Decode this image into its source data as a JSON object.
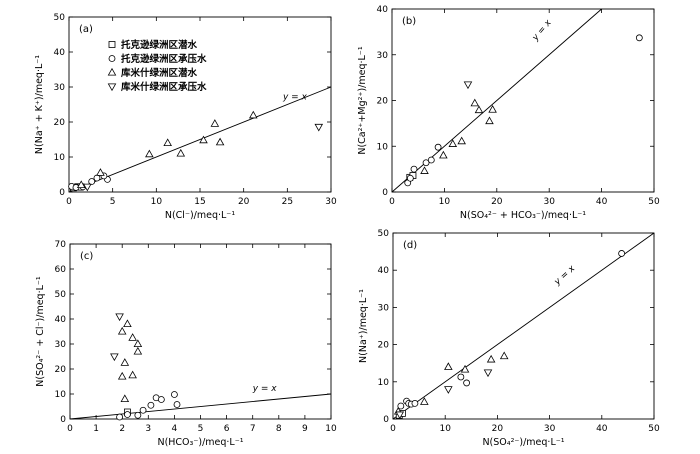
{
  "legend": {
    "items": [
      {
        "label": "托克逊绿洲区潜水",
        "marker": "square"
      },
      {
        "label": "托克逊绿洲区承压水",
        "marker": "circle"
      },
      {
        "label": "库米什绿洲区潜水",
        "marker": "tri-up"
      },
      {
        "label": "库米什绿洲区承压水",
        "marker": "tri-down"
      }
    ]
  },
  "chart_data": [
    {
      "panel": "(a)",
      "type": "scatter",
      "xlabel": "N(Cl⁻)/meq·L⁻¹",
      "ylabel": "N(Na⁺ + K⁺)/meq·L⁻¹",
      "xlim": [
        0,
        30
      ],
      "ylim": [
        0,
        50
      ],
      "xticks": [
        "0",
        "5",
        "10",
        "15",
        "20",
        "25",
        "30"
      ],
      "yticks": [
        "0",
        "10",
        "20",
        "30",
        "40",
        "50"
      ],
      "refline": {
        "label": "y = x",
        "points": [
          [
            0,
            0
          ],
          [
            30,
            30
          ]
        ]
      },
      "series": [
        {
          "marker": "square",
          "points": [
            [
              0.5,
              1.2
            ],
            [
              1.0,
              1.5
            ],
            [
              1.3,
              1.4
            ]
          ]
        },
        {
          "marker": "circle",
          "points": [
            [
              0.3,
              1.6
            ],
            [
              0.8,
              1.3
            ],
            [
              1.6,
              1.5
            ],
            [
              2.6,
              3.0
            ],
            [
              3.2,
              4.0
            ],
            [
              4.4,
              3.6
            ],
            [
              4.0,
              4.6
            ]
          ]
        },
        {
          "marker": "tri-up",
          "points": [
            [
              1.4,
              2.0
            ],
            [
              3.6,
              5.5
            ],
            [
              9.2,
              10.8
            ],
            [
              11.3,
              14.0
            ],
            [
              12.8,
              11.0
            ],
            [
              16.7,
              19.5
            ],
            [
              17.3,
              14.2
            ],
            [
              21.1,
              21.9
            ],
            [
              15.4,
              14.8
            ]
          ]
        },
        {
          "marker": "tri-down",
          "points": [
            [
              2.1,
              1.5
            ],
            [
              28.6,
              18.6
            ]
          ]
        }
      ]
    },
    {
      "panel": "(b)",
      "type": "scatter",
      "xlabel": "N(SO₄²⁻ + HCO₃⁻)/meq·L⁻¹",
      "ylabel": "N(Ca²⁺+Mg²⁺)/meq·L⁻¹",
      "xlim": [
        0,
        50
      ],
      "ylim": [
        0,
        40
      ],
      "xticks": [
        "0",
        "10",
        "20",
        "30",
        "40",
        "50"
      ],
      "yticks": [
        "0",
        "10",
        "20",
        "30",
        "40"
      ],
      "refline": {
        "label": "y = x",
        "points": [
          [
            0,
            0
          ],
          [
            40,
            40
          ]
        ]
      },
      "series": [
        {
          "marker": "square",
          "points": [
            [
              3.4,
              3.2
            ],
            [
              4.0,
              3.6
            ]
          ]
        },
        {
          "marker": "circle",
          "points": [
            [
              3.0,
              2.0
            ],
            [
              3.5,
              3.0
            ],
            [
              4.2,
              5.0
            ],
            [
              6.5,
              6.4
            ],
            [
              7.5,
              7.0
            ],
            [
              8.8,
              9.8
            ],
            [
              47.2,
              33.7
            ]
          ]
        },
        {
          "marker": "tri-up",
          "points": [
            [
              6.2,
              4.6
            ],
            [
              9.8,
              8.0
            ],
            [
              11.6,
              10.5
            ],
            [
              13.3,
              11.1
            ],
            [
              15.8,
              19.4
            ],
            [
              16.6,
              17.9
            ],
            [
              18.6,
              15.5
            ],
            [
              19.2,
              18.0
            ]
          ]
        },
        {
          "marker": "tri-down",
          "points": [
            [
              14.5,
              23.5
            ]
          ]
        }
      ]
    },
    {
      "panel": "(c)",
      "type": "scatter",
      "xlabel": "N(HCO₃⁻)/meq·L⁻¹",
      "ylabel": "N(SO₄²⁻ + Cl⁻)/meq·L⁻¹",
      "xlim": [
        0,
        10
      ],
      "ylim": [
        0,
        70
      ],
      "xticks": [
        "0",
        "1",
        "2",
        "3",
        "4",
        "5",
        "6",
        "7",
        "8",
        "9",
        "10"
      ],
      "yticks": [
        "0",
        "10",
        "20",
        "30",
        "40",
        "50",
        "60",
        "70"
      ],
      "refline": {
        "label": "y = x",
        "points": [
          [
            0,
            0
          ],
          [
            10,
            10
          ]
        ]
      },
      "series": [
        {
          "marker": "square",
          "points": [
            [
              2.2,
              2.8
            ]
          ]
        },
        {
          "marker": "circle",
          "points": [
            [
              1.9,
              0.8
            ],
            [
              2.2,
              1.8
            ],
            [
              2.6,
              1.5
            ],
            [
              2.8,
              3.5
            ],
            [
              3.1,
              5.5
            ],
            [
              3.3,
              8.5
            ],
            [
              3.5,
              7.8
            ],
            [
              4.0,
              9.8
            ],
            [
              4.1,
              5.8
            ]
          ]
        },
        {
          "marker": "tri-up",
          "points": [
            [
              2.0,
              17.0
            ],
            [
              2.1,
              22.5
            ],
            [
              2.2,
              38.0
            ],
            [
              2.4,
              17.5
            ],
            [
              2.4,
              32.5
            ],
            [
              2.6,
              30.0
            ],
            [
              2.6,
              27.0
            ],
            [
              2.0,
              35.0
            ],
            [
              2.1,
              8.0
            ]
          ]
        },
        {
          "marker": "tri-down",
          "points": [
            [
              1.7,
              25.0
            ],
            [
              1.9,
              41.0
            ]
          ]
        }
      ]
    },
    {
      "panel": "(d)",
      "type": "scatter",
      "xlabel": "N(SO₄²⁻)/meq·L⁻¹",
      "ylabel": "N(Na⁺)/meq·L⁻¹",
      "xlim": [
        0,
        50
      ],
      "ylim": [
        0,
        50
      ],
      "xticks": [
        "0",
        "10",
        "20",
        "30",
        "40",
        "50"
      ],
      "yticks": [
        "0",
        "10",
        "20",
        "30",
        "40",
        "50"
      ],
      "refline": {
        "label": "y = x",
        "points": [
          [
            0,
            0
          ],
          [
            50,
            50
          ]
        ]
      },
      "series": [
        {
          "marker": "square",
          "points": [
            [
              1.2,
              1.0
            ],
            [
              1.8,
              1.5
            ]
          ]
        },
        {
          "marker": "circle",
          "points": [
            [
              1.5,
              3.5
            ],
            [
              2.6,
              4.8
            ],
            [
              3.0,
              4.2
            ],
            [
              3.5,
              4.0
            ],
            [
              4.2,
              4.2
            ],
            [
              13.0,
              11.3
            ],
            [
              14.1,
              9.7
            ],
            [
              43.8,
              44.5
            ]
          ]
        },
        {
          "marker": "tri-up",
          "points": [
            [
              1.0,
              2.0
            ],
            [
              6.0,
              4.6
            ],
            [
              10.6,
              14.0
            ],
            [
              13.8,
              13.3
            ],
            [
              18.8,
              16.0
            ],
            [
              21.3,
              16.9
            ]
          ]
        },
        {
          "marker": "tri-down",
          "points": [
            [
              1.3,
              1.2
            ],
            [
              10.6,
              8.0
            ],
            [
              18.2,
              12.5
            ]
          ]
        }
      ]
    }
  ]
}
